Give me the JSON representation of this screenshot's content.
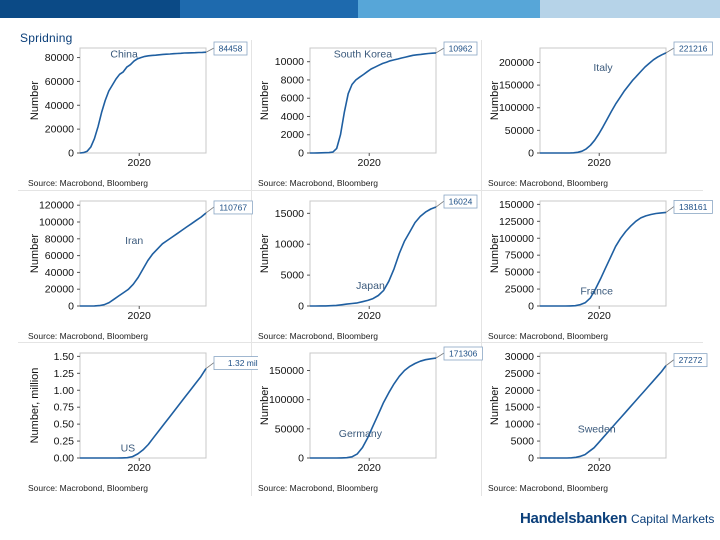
{
  "page": {
    "title": "Spridning",
    "logo_main": "Handelsbanken",
    "logo_sub": "Capital Markets",
    "colors": {
      "line": "#1f5fa1",
      "grid": "#c8c8c8",
      "brand": "#0b3f7a"
    }
  },
  "chart_data": [
    {
      "type": "line",
      "country": "China",
      "ylabel": "Number",
      "xlabel": "",
      "x_tick": "2020",
      "yticks": [
        0,
        20000,
        40000,
        60000,
        80000
      ],
      "ytick_labels": [
        "0",
        "20000",
        "40000",
        "60000",
        "80000"
      ],
      "ylim": [
        0,
        88000
      ],
      "last_value_label": "84458",
      "values": [
        0,
        300,
        1500,
        5000,
        12000,
        22000,
        34000,
        44000,
        52000,
        57000,
        62000,
        66000,
        68000,
        72000,
        74000,
        77000,
        79000,
        80000,
        81000,
        81500,
        81800,
        82000,
        82300,
        82600,
        82800,
        83000,
        83200,
        83400,
        83600,
        83800,
        83900,
        84000,
        84100,
        84200,
        84300,
        84458
      ],
      "source": "Source: Macrobond, Bloomberg"
    },
    {
      "type": "line",
      "country": "South Korea",
      "ylabel": "Number",
      "xlabel": "",
      "x_tick": "2020",
      "yticks": [
        0,
        2000,
        4000,
        6000,
        8000,
        10000
      ],
      "ytick_labels": [
        "0",
        "2000",
        "4000",
        "6000",
        "8000",
        "10000"
      ],
      "ylim": [
        0,
        11500
      ],
      "last_value_label": "10962",
      "values": [
        0,
        0,
        10,
        20,
        30,
        40,
        100,
        500,
        2000,
        4500,
        6500,
        7500,
        8000,
        8300,
        8600,
        8900,
        9200,
        9400,
        9600,
        9800,
        9950,
        10100,
        10200,
        10300,
        10400,
        10500,
        10600,
        10700,
        10750,
        10800,
        10850,
        10900,
        10930,
        10962
      ],
      "source": "Source: Macrobond, Bloomberg"
    },
    {
      "type": "line",
      "country": "Italy",
      "ylabel": "Number",
      "xlabel": "",
      "x_tick": "2020",
      "yticks": [
        0,
        50000,
        100000,
        150000,
        200000
      ],
      "ytick_labels": [
        "0",
        "50000",
        "100000",
        "150000",
        "200000"
      ],
      "ylim": [
        0,
        232000
      ],
      "last_value_label": "221216",
      "values": [
        0,
        0,
        0,
        0,
        0,
        0,
        0,
        100,
        500,
        1500,
        4000,
        9000,
        17000,
        28000,
        42000,
        58000,
        75000,
        92000,
        108000,
        122000,
        136000,
        148000,
        160000,
        170000,
        180000,
        190000,
        198000,
        206000,
        212000,
        217000,
        221216
      ],
      "source": "Source: Macrobond, Bloomberg"
    },
    {
      "type": "line",
      "country": "Iran",
      "ylabel": "Number",
      "xlabel": "",
      "x_tick": "2020",
      "yticks": [
        0,
        20000,
        40000,
        60000,
        80000,
        100000,
        120000
      ],
      "ytick_labels": [
        "0",
        "20000",
        "40000",
        "60000",
        "80000",
        "100000",
        "120000"
      ],
      "ylim": [
        0,
        125000
      ],
      "last_value_label": "110767",
      "values": [
        0,
        0,
        0,
        100,
        500,
        1500,
        4000,
        8000,
        12000,
        16000,
        20000,
        26000,
        34000,
        44000,
        54000,
        62000,
        68000,
        74000,
        78000,
        82000,
        86000,
        90000,
        94000,
        98000,
        102000,
        106000,
        110767
      ],
      "source": "Source: Macrobond, Bloomberg"
    },
    {
      "type": "line",
      "country": "Japan",
      "ylabel": "Number",
      "xlabel": "",
      "x_tick": "2020",
      "yticks": [
        0,
        5000,
        10000,
        15000
      ],
      "ytick_labels": [
        "0",
        "5000",
        "10000",
        "15000"
      ],
      "ylim": [
        0,
        17000
      ],
      "last_value_label": "16024",
      "values": [
        0,
        0,
        10,
        20,
        50,
        100,
        200,
        300,
        400,
        500,
        700,
        900,
        1200,
        1700,
        2500,
        4000,
        6000,
        8500,
        10500,
        12000,
        13500,
        14500,
        15200,
        15700,
        16024
      ],
      "source": "Source: Macrobond, Bloomberg"
    },
    {
      "type": "line",
      "country": "France",
      "ylabel": "Number",
      "xlabel": "",
      "x_tick": "2020",
      "yticks": [
        0,
        25000,
        50000,
        75000,
        100000,
        125000,
        150000
      ],
      "ytick_labels": [
        "0",
        "25000",
        "50000",
        "75000",
        "100000",
        "125000",
        "150000"
      ],
      "ylim": [
        0,
        155000
      ],
      "last_value_label": "138161",
      "values": [
        0,
        0,
        0,
        0,
        0,
        0,
        100,
        500,
        2000,
        5000,
        12000,
        25000,
        40000,
        56000,
        72000,
        88000,
        100000,
        110000,
        118000,
        125000,
        130000,
        133000,
        135000,
        136500,
        137500,
        138161
      ],
      "source": "Source: Macrobond, Bloomberg"
    },
    {
      "type": "line",
      "country": "US",
      "ylabel": "Number, million",
      "xlabel": "",
      "x_tick": "2020",
      "yticks": [
        0,
        0.25,
        0.5,
        0.75,
        1.0,
        1.25,
        1.5
      ],
      "ytick_labels": [
        "0.00",
        "0.25",
        "0.50",
        "0.75",
        "1.00",
        "1.25",
        "1.50"
      ],
      "ylim": [
        0,
        1.55
      ],
      "last_value_label": "1.32 million",
      "values": [
        0,
        0,
        0,
        0,
        0,
        0,
        0,
        0,
        0.001,
        0.005,
        0.02,
        0.06,
        0.12,
        0.2,
        0.3,
        0.4,
        0.5,
        0.6,
        0.7,
        0.8,
        0.9,
        1.0,
        1.1,
        1.2,
        1.32
      ],
      "source": "Source: Macrobond, Bloomberg"
    },
    {
      "type": "line",
      "country": "Germany",
      "ylabel": "Number",
      "xlabel": "",
      "x_tick": "2020",
      "yticks": [
        0,
        50000,
        100000,
        150000
      ],
      "ytick_labels": [
        "0",
        "50000",
        "100000",
        "150000"
      ],
      "ylim": [
        0,
        180000
      ],
      "last_value_label": "171306",
      "values": [
        0,
        0,
        0,
        0,
        0,
        0,
        100,
        500,
        2000,
        7000,
        18000,
        35000,
        55000,
        75000,
        95000,
        112000,
        127000,
        140000,
        150000,
        157000,
        162000,
        166000,
        168500,
        170000,
        171306
      ],
      "source": "Source: Macrobond, Bloomberg"
    },
    {
      "type": "line",
      "country": "Sweden",
      "ylabel": "Number",
      "xlabel": "",
      "x_tick": "2020",
      "yticks": [
        0,
        5000,
        10000,
        15000,
        20000,
        25000,
        30000
      ],
      "ytick_labels": [
        "0",
        "5000",
        "10000",
        "15000",
        "20000",
        "25000",
        "30000"
      ],
      "ylim": [
        0,
        31000
      ],
      "last_value_label": "27272",
      "values": [
        0,
        0,
        0,
        0,
        0,
        0,
        0,
        50,
        200,
        500,
        1000,
        2000,
        3000,
        4500,
        6000,
        7500,
        9000,
        10500,
        12000,
        13500,
        15000,
        16500,
        18000,
        19500,
        21000,
        22500,
        24000,
        25500,
        27272
      ],
      "source": "Source: Macrobond, Bloomberg"
    }
  ]
}
